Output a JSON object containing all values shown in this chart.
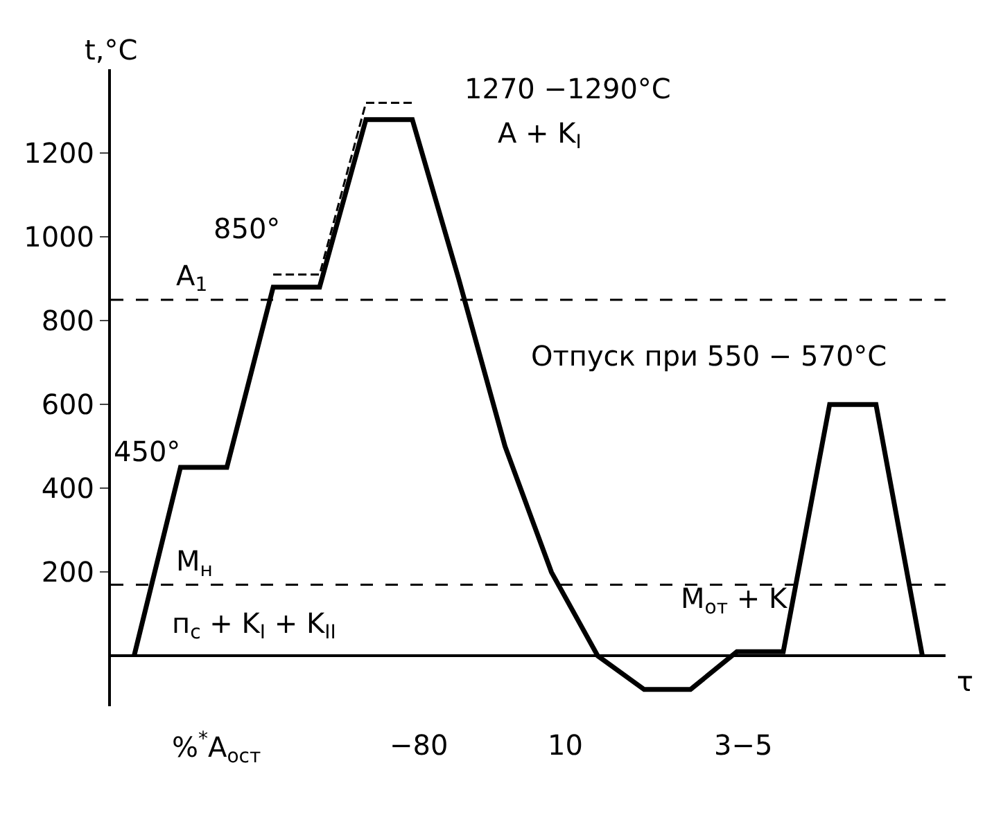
{
  "chart_data": {
    "type": "line",
    "ylabel": "t,°C",
    "categories": [
      null,
      null,
      null,
      null,
      null,
      null,
      null,
      null,
      null,
      null,
      null,
      null,
      null,
      null,
      null,
      null,
      null,
      null
    ],
    "series": [
      {
        "color": "#000000",
        "values": [
          0,
          450,
          450,
          880,
          880,
          1280,
          1280,
          900,
          500,
          200,
          0,
          -80,
          -80,
          10,
          10,
          600,
          600,
          0
        ]
      },
      {
        "color": "#000000",
        "line_style": "dashed",
        "values": [
          null,
          null,
          null,
          910,
          910,
          1320,
          1320,
          null,
          null,
          null,
          null,
          null,
          null,
          null,
          null,
          null,
          null,
          null
        ]
      }
    ],
    "ylim": [
      -120,
      1400
    ],
    "yticks": [
      200,
      400,
      600,
      800,
      1000,
      1200
    ],
    "ref_lines": [
      {
        "axis": "y",
        "value": 850,
        "label": "A$_{1}$",
        "line_style": "dashed",
        "color": "#000000"
      },
      {
        "axis": "y",
        "value": 170,
        "label": "M$_{н}$",
        "line_style": "dashed",
        "color": "#000000"
      }
    ],
    "annotations": [
      "1270 −1290°C",
      "A + K$_{I}$",
      "850°",
      "450°",
      "Отпуск при 550 − 570°C",
      "п$_{с}$ + K$_{I}$ + K$_{II}$",
      "%$^{*}$A$_{ост}$",
      "−80",
      "10",
      "3−5",
      "M$_{от}$ + K",
      "τ"
    ],
    "grid": false,
    "marker": "none",
    "line_style": "solid"
  }
}
